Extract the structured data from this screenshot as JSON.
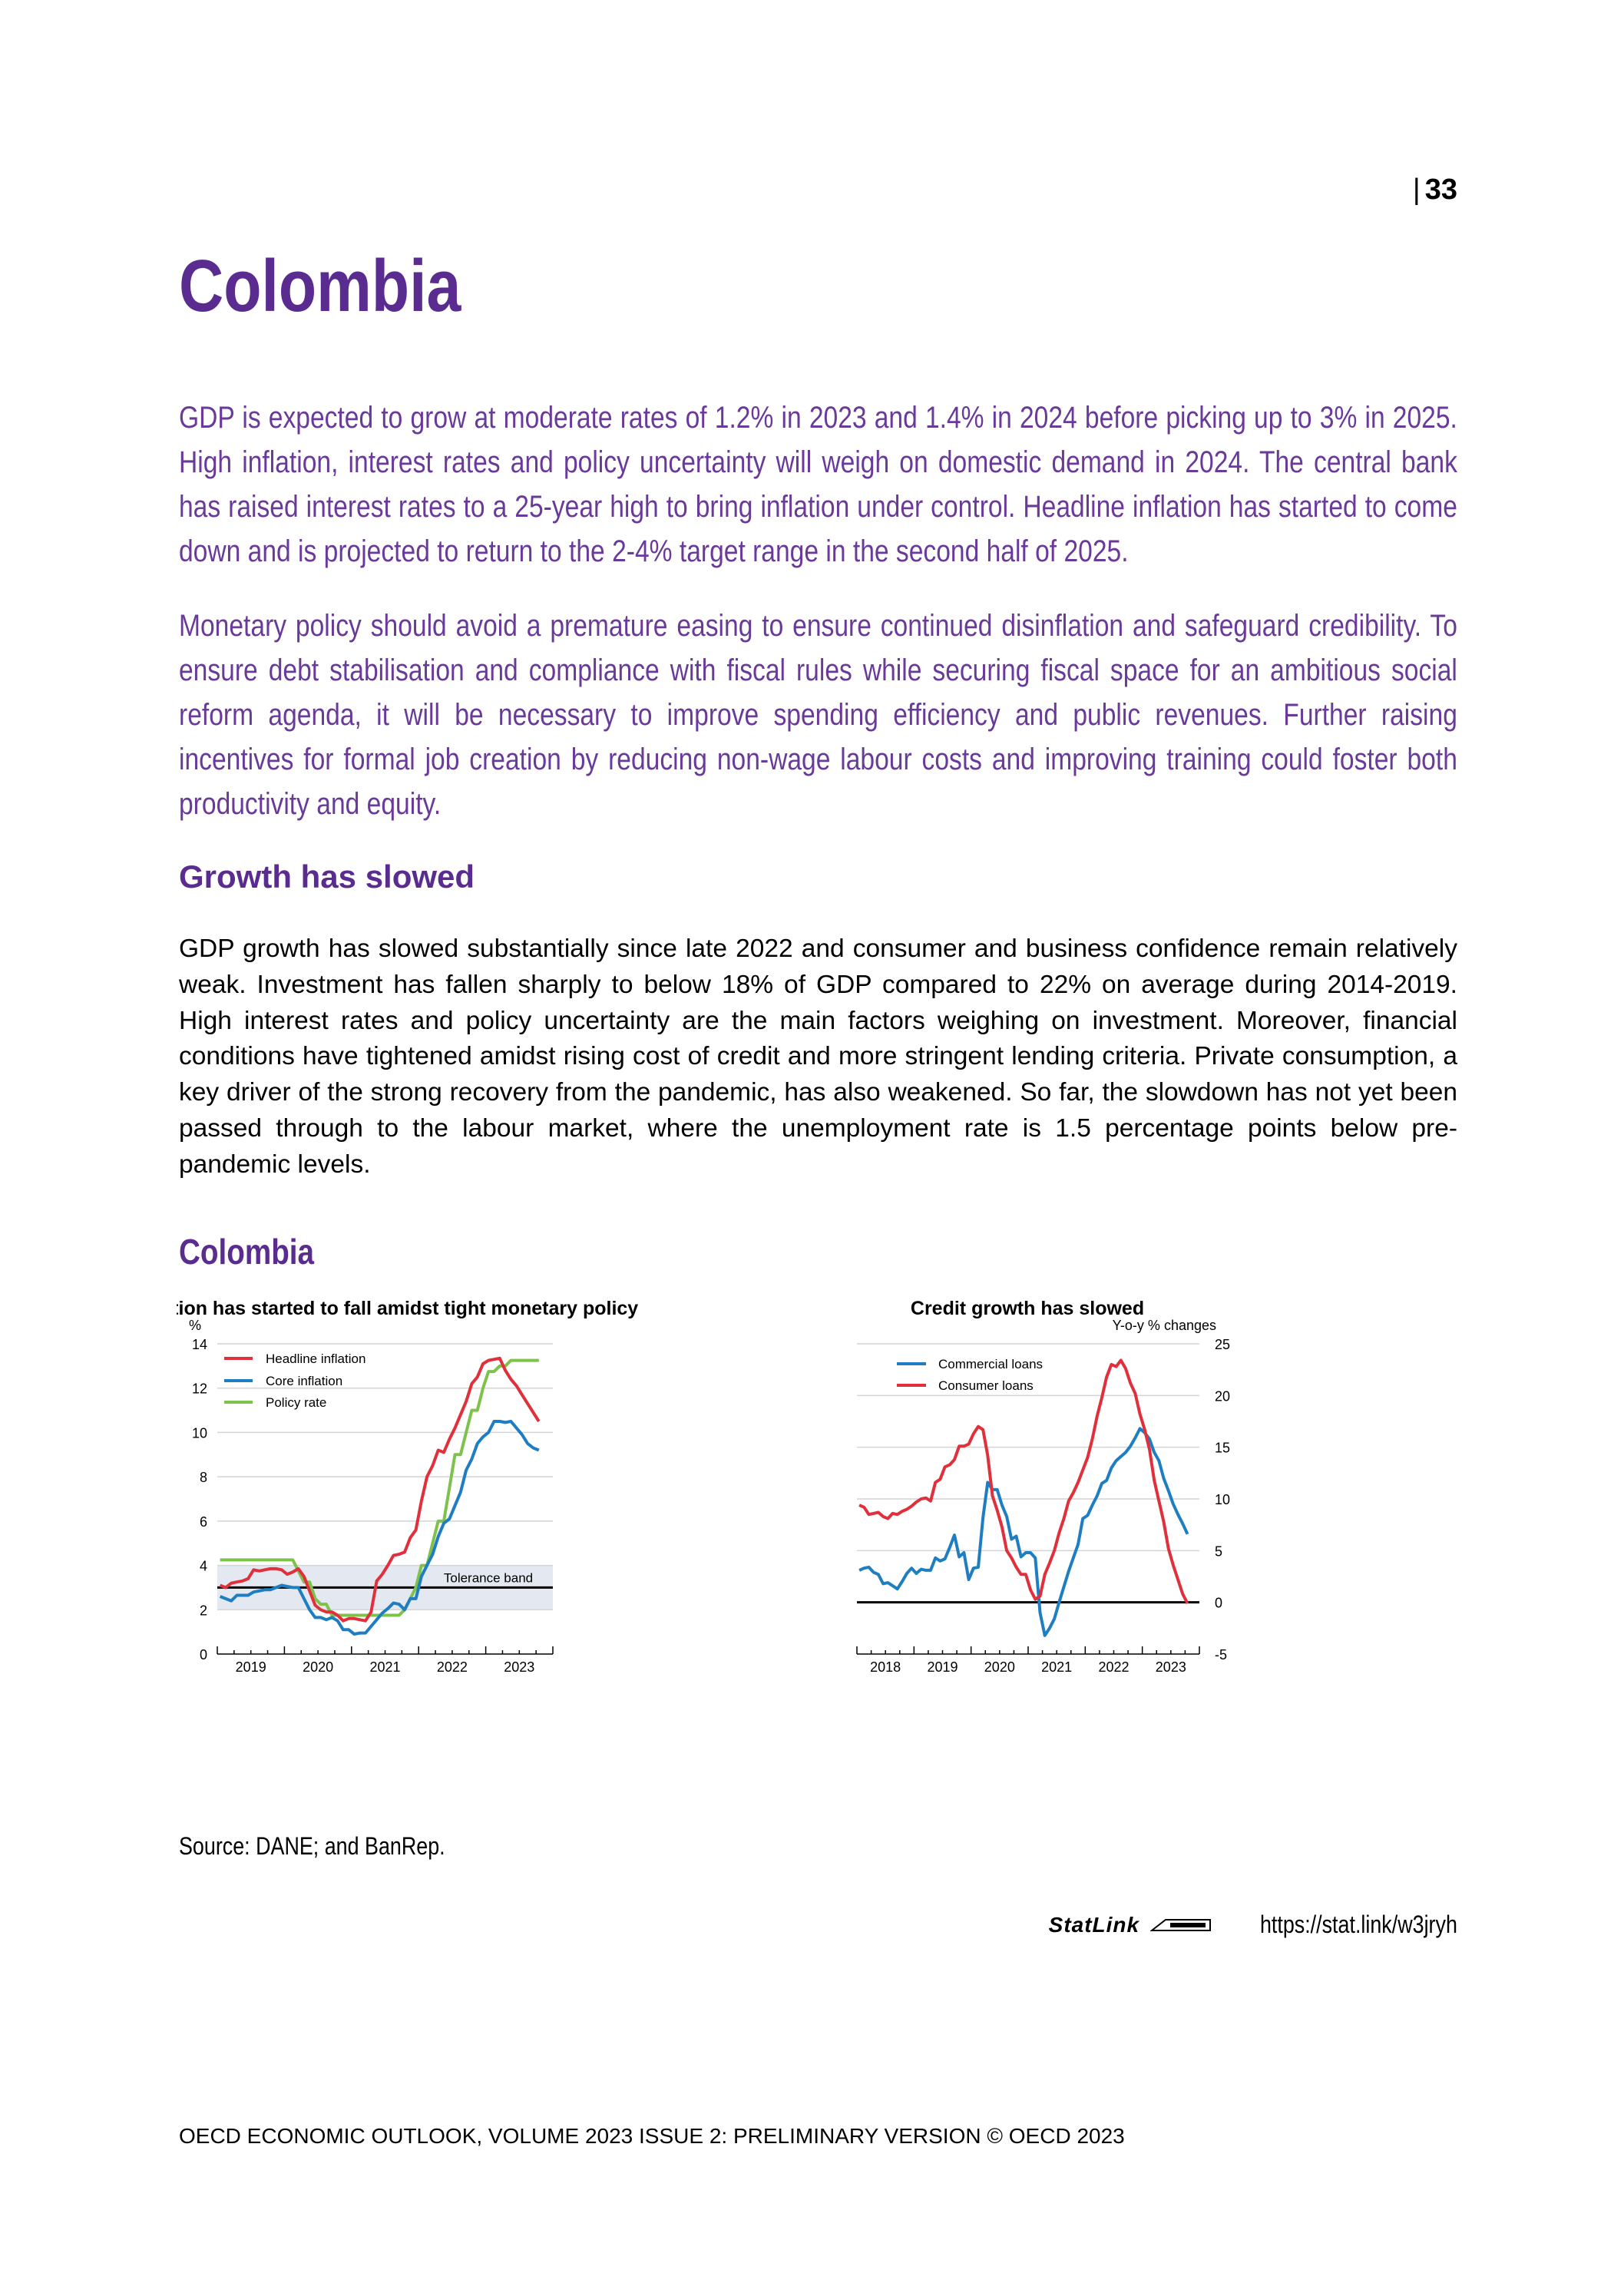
{
  "page_number": "33",
  "title": "Colombia",
  "intro": [
    "GDP is expected to grow at moderate rates of 1.2% in 2023 and 1.4% in 2024 before picking up to 3% in 2025. High inflation, interest rates and policy uncertainty will weigh on domestic demand in 2024. The central bank has raised interest rates to a 25-year high to bring inflation under control. Headline inflation has started to come down and is projected to return to the 2-4% target range in the second half of 2025.",
    "Monetary policy should avoid a premature easing to ensure continued disinflation and safeguard credibility. To ensure debt stabilisation and compliance with fiscal rules while securing fiscal space for an ambitious social reform agenda, it will be necessary to improve spending efficiency and public revenues. Further raising incentives for formal job creation by reducing non-wage labour costs and improving training could foster both productivity and equity."
  ],
  "section_heading": "Growth has slowed",
  "body": "GDP growth has slowed substantially since late 2022 and consumer and business confidence remain relatively weak. Investment has fallen sharply to below 18% of GDP compared to 22% on average during 2014-2019. High interest rates and policy uncertainty are the main factors weighing on investment. Moreover, financial conditions have tightened amidst rising cost of credit and more stringent lending criteria. Private consumption, a key driver of the strong recovery from the pandemic, has also weakened. So far, the slowdown has not yet been passed through to the labour market, where the unemployment rate is 1.5 percentage points below pre-pandemic levels.",
  "figure_title": "Colombia",
  "source": "Source: DANE; and BanRep.",
  "statlink": {
    "label": "StatLink",
    "url": "https://stat.link/w3jryh"
  },
  "footer": "OECD ECONOMIC OUTLOOK, VOLUME 2023 ISSUE 2: PRELIMINARY VERSION © OECD 2023",
  "colors": {
    "headline": "#e0303b",
    "core": "#1f7ec1",
    "policy": "#7dc24b",
    "band": "#e3e8f1",
    "title": "#5b2c8f"
  },
  "chart_data": [
    {
      "type": "line",
      "title": "Inflation has started to fall amidst tight monetary policy",
      "ylabel": "%",
      "ylim": [
        0,
        14
      ],
      "yticks": [
        "0",
        "2",
        "4",
        "6",
        "8",
        "10",
        "12",
        "14"
      ],
      "xticks": [
        "2019",
        "2020",
        "2021",
        "2022",
        "2023"
      ],
      "grid": true,
      "legend": "top-left",
      "band": {
        "label": "Tolerance band",
        "range": [
          2,
          4
        ],
        "target": 3
      },
      "x": [
        "2019-01",
        "2019-02",
        "2019-03",
        "2019-04",
        "2019-05",
        "2019-06",
        "2019-07",
        "2019-08",
        "2019-09",
        "2019-10",
        "2019-11",
        "2019-12",
        "2020-01",
        "2020-02",
        "2020-03",
        "2020-04",
        "2020-05",
        "2020-06",
        "2020-07",
        "2020-08",
        "2020-09",
        "2020-10",
        "2020-11",
        "2020-12",
        "2021-01",
        "2021-02",
        "2021-03",
        "2021-04",
        "2021-05",
        "2021-06",
        "2021-07",
        "2021-08",
        "2021-09",
        "2021-10",
        "2021-11",
        "2021-12",
        "2022-01",
        "2022-02",
        "2022-03",
        "2022-04",
        "2022-05",
        "2022-06",
        "2022-07",
        "2022-08",
        "2022-09",
        "2022-10",
        "2022-11",
        "2022-12",
        "2023-01",
        "2023-02",
        "2023-03",
        "2023-04",
        "2023-05",
        "2023-06",
        "2023-07",
        "2023-08",
        "2023-09",
        "2023-10"
      ],
      "series": [
        {
          "name": "Headline inflation",
          "color": "#e0303b",
          "values": [
            3.1,
            3.0,
            3.2,
            3.25,
            3.3,
            3.4,
            3.8,
            3.75,
            3.8,
            3.85,
            3.85,
            3.8,
            3.6,
            3.7,
            3.85,
            3.5,
            2.85,
            2.2,
            2.0,
            1.9,
            1.9,
            1.75,
            1.5,
            1.6,
            1.6,
            1.55,
            1.5,
            1.9,
            3.3,
            3.6,
            4.0,
            4.45,
            4.5,
            4.6,
            5.25,
            5.6,
            6.9,
            8.0,
            8.5,
            9.2,
            9.1,
            9.7,
            10.2,
            10.8,
            11.4,
            12.2,
            12.5,
            13.1,
            13.25,
            13.3,
            13.35,
            12.8,
            12.4,
            12.1,
            11.7,
            11.3,
            10.9,
            10.5
          ]
        },
        {
          "name": "Core inflation",
          "color": "#1f7ec1",
          "values": [
            2.6,
            2.5,
            2.4,
            2.65,
            2.65,
            2.65,
            2.8,
            2.85,
            2.9,
            2.9,
            3.0,
            3.1,
            3.05,
            3.0,
            3.0,
            2.5,
            2.0,
            1.65,
            1.65,
            1.55,
            1.65,
            1.5,
            1.1,
            1.1,
            0.9,
            0.95,
            0.95,
            1.25,
            1.55,
            1.85,
            2.05,
            2.3,
            2.25,
            2.0,
            2.5,
            2.5,
            3.5,
            4.0,
            4.5,
            5.3,
            5.9,
            6.1,
            6.7,
            7.3,
            8.3,
            8.8,
            9.5,
            9.8,
            10.0,
            10.5,
            10.5,
            10.45,
            10.5,
            10.2,
            9.9,
            9.5,
            9.3,
            9.2
          ]
        },
        {
          "name": "Policy rate",
          "color": "#7dc24b",
          "values": [
            4.25,
            4.25,
            4.25,
            4.25,
            4.25,
            4.25,
            4.25,
            4.25,
            4.25,
            4.25,
            4.25,
            4.25,
            4.25,
            4.25,
            3.75,
            3.25,
            3.25,
            2.5,
            2.25,
            2.25,
            1.75,
            1.75,
            1.75,
            1.75,
            1.75,
            1.75,
            1.75,
            1.75,
            1.75,
            1.75,
            1.75,
            1.75,
            1.75,
            2.0,
            2.5,
            3.0,
            4.0,
            4.0,
            5.0,
            6.0,
            6.0,
            7.5,
            9.0,
            9.0,
            10.0,
            11.0,
            11.0,
            12.0,
            12.75,
            12.75,
            13.0,
            13.0,
            13.25,
            13.25,
            13.25,
            13.25,
            13.25,
            13.25
          ]
        }
      ]
    },
    {
      "type": "line",
      "title": "Credit growth has slowed",
      "ylabel": "Y-o-y % changes",
      "ylim": [
        -5,
        25
      ],
      "yticks": [
        "-5",
        "0",
        "5",
        "10",
        "15",
        "20",
        "25"
      ],
      "xticks": [
        "2018",
        "2019",
        "2020",
        "2021",
        "2022",
        "2023"
      ],
      "grid": true,
      "legend": "top-left",
      "x": [
        "2018-01",
        "2018-02",
        "2018-03",
        "2018-04",
        "2018-05",
        "2018-06",
        "2018-07",
        "2018-08",
        "2018-09",
        "2018-10",
        "2018-11",
        "2018-12",
        "2019-01",
        "2019-02",
        "2019-03",
        "2019-04",
        "2019-05",
        "2019-06",
        "2019-07",
        "2019-08",
        "2019-09",
        "2019-10",
        "2019-11",
        "2019-12",
        "2020-01",
        "2020-02",
        "2020-03",
        "2020-04",
        "2020-05",
        "2020-06",
        "2020-07",
        "2020-08",
        "2020-09",
        "2020-10",
        "2020-11",
        "2020-12",
        "2021-01",
        "2021-02",
        "2021-03",
        "2021-04",
        "2021-05",
        "2021-06",
        "2021-07",
        "2021-08",
        "2021-09",
        "2021-10",
        "2021-11",
        "2021-12",
        "2022-01",
        "2022-02",
        "2022-03",
        "2022-04",
        "2022-05",
        "2022-06",
        "2022-07",
        "2022-08",
        "2022-09",
        "2022-10",
        "2022-11",
        "2022-12",
        "2023-01",
        "2023-02",
        "2023-03",
        "2023-04",
        "2023-05",
        "2023-06",
        "2023-07",
        "2023-08",
        "2023-09",
        "2023-10"
      ],
      "series": [
        {
          "name": "Commercial loans",
          "color": "#1f7ec1",
          "values": [
            3.1,
            3.3,
            3.4,
            2.9,
            2.7,
            1.8,
            1.9,
            1.6,
            1.3,
            2.0,
            2.8,
            3.3,
            2.8,
            3.2,
            3.1,
            3.1,
            4.3,
            4.0,
            4.2,
            5.3,
            6.5,
            4.4,
            4.8,
            2.2,
            3.3,
            3.4,
            8.2,
            11.6,
            10.9,
            10.9,
            9.4,
            8.3,
            6.1,
            6.4,
            4.4,
            4.8,
            4.8,
            4.3,
            -1.0,
            -3.2,
            -2.5,
            -1.6,
            0.0,
            1.5,
            3.0,
            4.3,
            5.6,
            8.1,
            8.4,
            9.4,
            10.3,
            11.5,
            11.8,
            13.0,
            13.7,
            14.1,
            14.5,
            15.1,
            15.9,
            16.8,
            16.4,
            15.8,
            14.5,
            13.7,
            12.0,
            10.8,
            9.5,
            8.5,
            7.6,
            6.6
          ]
        },
        {
          "name": "Consumer loans",
          "color": "#e0303b",
          "values": [
            9.4,
            9.2,
            8.5,
            8.6,
            8.7,
            8.3,
            8.1,
            8.6,
            8.5,
            8.8,
            9.0,
            9.3,
            9.7,
            10.0,
            10.1,
            9.8,
            11.6,
            11.9,
            13.1,
            13.3,
            13.8,
            15.1,
            15.1,
            15.3,
            16.3,
            17.0,
            16.7,
            14.2,
            10.3,
            8.9,
            7.3,
            5.0,
            4.3,
            3.4,
            2.7,
            2.7,
            1.2,
            0.3,
            0.6,
            2.7,
            3.8,
            5.0,
            6.7,
            8.1,
            9.8,
            10.6,
            11.6,
            12.8,
            14.0,
            15.8,
            18.0,
            19.8,
            21.8,
            23.0,
            22.8,
            23.4,
            22.6,
            21.2,
            20.2,
            18.2,
            16.7,
            14.8,
            11.8,
            9.8,
            7.8,
            5.2,
            3.6,
            2.2,
            0.8,
            -0.1
          ]
        }
      ]
    }
  ]
}
